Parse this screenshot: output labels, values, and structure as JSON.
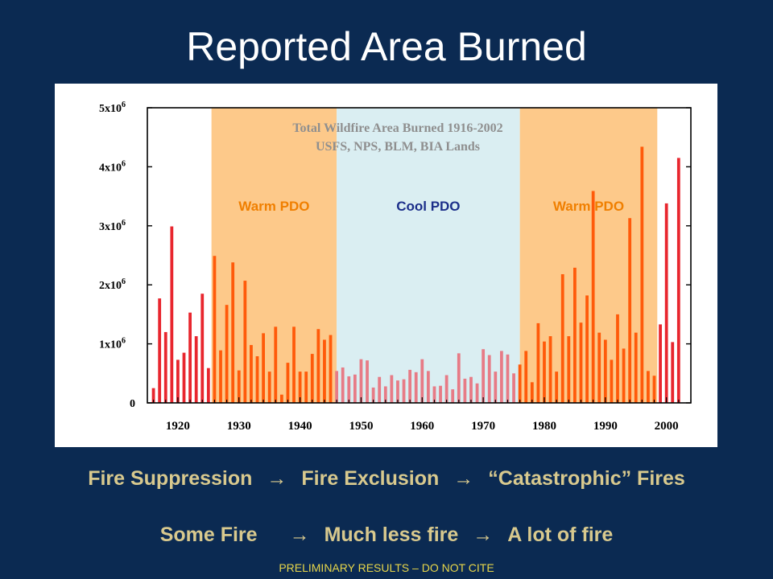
{
  "slide": {
    "title": "Reported Area Burned",
    "flow_line_1": [
      "Fire Suppression",
      "→",
      "Fire Exclusion",
      "→",
      "“Catastrophic” Fires"
    ],
    "flow_line_2": [
      "Some Fire",
      "→",
      "Much less fire",
      "→",
      "A lot of fire"
    ],
    "footer": "PRELIMINARY RESULTS – DO NOT CITE",
    "colors": {
      "background": "#0b2a52",
      "title": "#ffffff",
      "caption": "#d8c98e",
      "footer": "#e7d64a"
    }
  },
  "chart_data": {
    "type": "bar",
    "title": "Total Wildfire Area Burned 1916-2002",
    "subtitle": "USFS, NPS, BLM, BIA Lands",
    "xlabel": "",
    "ylabel": "",
    "xlim": [
      1915,
      2004
    ],
    "ylim": [
      0,
      5000000
    ],
    "x_ticks": [
      1920,
      1930,
      1940,
      1950,
      1960,
      1970,
      1980,
      1990,
      2000
    ],
    "x_tick_labels": [
      "1920",
      "1930",
      "1940",
      "1950",
      "1960",
      "1970",
      "1980",
      "1990",
      "2000"
    ],
    "y_ticks": [
      0,
      1000000,
      2000000,
      3000000,
      4000000,
      5000000
    ],
    "y_tick_labels": [
      {
        "base": "0",
        "exp": ""
      },
      {
        "base": "1x10",
        "exp": "6"
      },
      {
        "base": "2x10",
        "exp": "6"
      },
      {
        "base": "3x10",
        "exp": "6"
      },
      {
        "base": "4x10",
        "exp": "6"
      },
      {
        "base": "5x10",
        "exp": "6"
      }
    ],
    "bands": [
      {
        "label": "Warm PDO",
        "start": 1925.5,
        "end": 1946,
        "color": "#fdc98a",
        "label_color": "#f07f00"
      },
      {
        "label": "Cool PDO",
        "start": 1946,
        "end": 1976,
        "color": "#daeef2",
        "label_color": "#1c2f8a"
      },
      {
        "label": "Warm PDO",
        "start": 1976,
        "end": 1998.5,
        "color": "#fdc98a",
        "label_color": "#f07f00"
      }
    ],
    "series": [
      {
        "color_warm_early": "#e8262e",
        "color_warm_pdo": "#ff5a0a",
        "color_cool_pdo": "#e77b86",
        "x": [
          1916,
          1917,
          1918,
          1919,
          1920,
          1921,
          1922,
          1923,
          1924,
          1925,
          1926,
          1927,
          1928,
          1929,
          1930,
          1931,
          1932,
          1933,
          1934,
          1935,
          1936,
          1937,
          1938,
          1939,
          1940,
          1941,
          1942,
          1943,
          1944,
          1945,
          1946,
          1947,
          1948,
          1949,
          1950,
          1951,
          1952,
          1953,
          1954,
          1955,
          1956,
          1957,
          1958,
          1959,
          1960,
          1961,
          1962,
          1963,
          1964,
          1965,
          1966,
          1967,
          1968,
          1969,
          1970,
          1971,
          1972,
          1973,
          1974,
          1975,
          1976,
          1977,
          1978,
          1979,
          1980,
          1981,
          1982,
          1983,
          1984,
          1985,
          1986,
          1987,
          1988,
          1989,
          1990,
          1991,
          1992,
          1993,
          1994,
          1995,
          1996,
          1997,
          1998,
          1999,
          2000,
          2001,
          2002
        ],
        "values": [
          250000,
          1770000,
          1200000,
          2990000,
          730000,
          850000,
          1530000,
          1130000,
          1850000,
          590000,
          2490000,
          890000,
          1660000,
          2380000,
          550000,
          2070000,
          980000,
          790000,
          1180000,
          530000,
          1290000,
          140000,
          680000,
          1290000,
          530000,
          530000,
          830000,
          1250000,
          1070000,
          1150000,
          540000,
          600000,
          450000,
          480000,
          740000,
          720000,
          260000,
          440000,
          280000,
          470000,
          380000,
          400000,
          560000,
          520000,
          740000,
          540000,
          280000,
          290000,
          470000,
          230000,
          840000,
          410000,
          440000,
          330000,
          910000,
          810000,
          530000,
          880000,
          820000,
          500000,
          650000,
          880000,
          350000,
          1350000,
          1040000,
          1130000,
          530000,
          2180000,
          1130000,
          2290000,
          1360000,
          1820000,
          3590000,
          1190000,
          1070000,
          730000,
          1500000,
          920000,
          3130000,
          1190000,
          4340000,
          540000,
          460000,
          1330000,
          3380000,
          1030000,
          4150000
        ]
      }
    ]
  }
}
